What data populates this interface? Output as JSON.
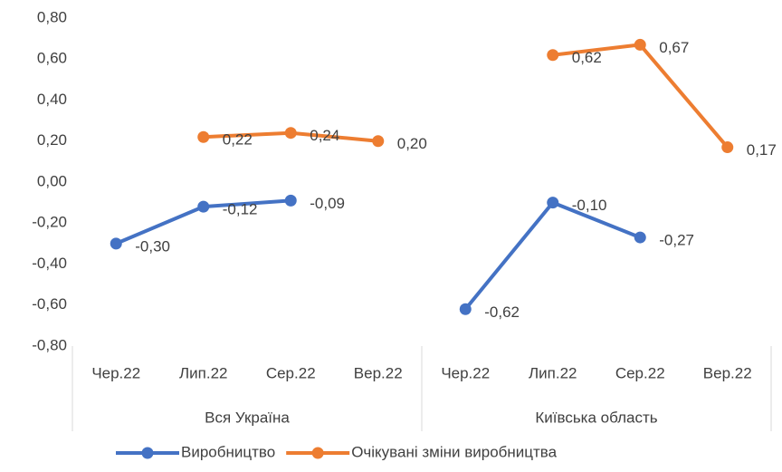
{
  "chart_data": {
    "type": "line",
    "groups": [
      {
        "label": "Вся Україна",
        "categories": [
          "Чер.22",
          "Лип.22",
          "Сер.22",
          "Вер.22"
        ]
      },
      {
        "label": "Київська область",
        "categories": [
          "Чер.22",
          "Лип.22",
          "Сер.22",
          "Вер.22"
        ]
      }
    ],
    "series": [
      {
        "name": "Виробництво",
        "color": "#4472c4",
        "values": [
          -0.3,
          -0.12,
          -0.09,
          null,
          -0.62,
          -0.1,
          -0.27,
          null
        ],
        "value_labels": [
          "-0,30",
          "-0,12",
          "-0,09",
          null,
          "-0,62",
          "-0,10",
          "-0,27",
          null
        ]
      },
      {
        "name": "Очікувані зміни виробництва",
        "color": "#ed7d31",
        "values": [
          null,
          0.22,
          0.24,
          0.2,
          null,
          0.62,
          0.67,
          0.17
        ],
        "value_labels": [
          null,
          "0,22",
          "0,24",
          "0,20",
          null,
          "0,62",
          "0,67",
          "0,17"
        ]
      }
    ],
    "ylim": [
      -0.8,
      0.8
    ],
    "yticks": [
      {
        "value": 0.8,
        "label": "0,80"
      },
      {
        "value": 0.6,
        "label": "0,60"
      },
      {
        "value": 0.4,
        "label": "0,40"
      },
      {
        "value": 0.2,
        "label": "0,20"
      },
      {
        "value": 0,
        "label": "0,00"
      },
      {
        "value": -0.2,
        "label": "-0,20"
      },
      {
        "value": -0.4,
        "label": "-0,40"
      },
      {
        "value": -0.6,
        "label": "-0,60"
      },
      {
        "value": -0.8,
        "label": "-0,80"
      }
    ],
    "legend": "bottom"
  }
}
